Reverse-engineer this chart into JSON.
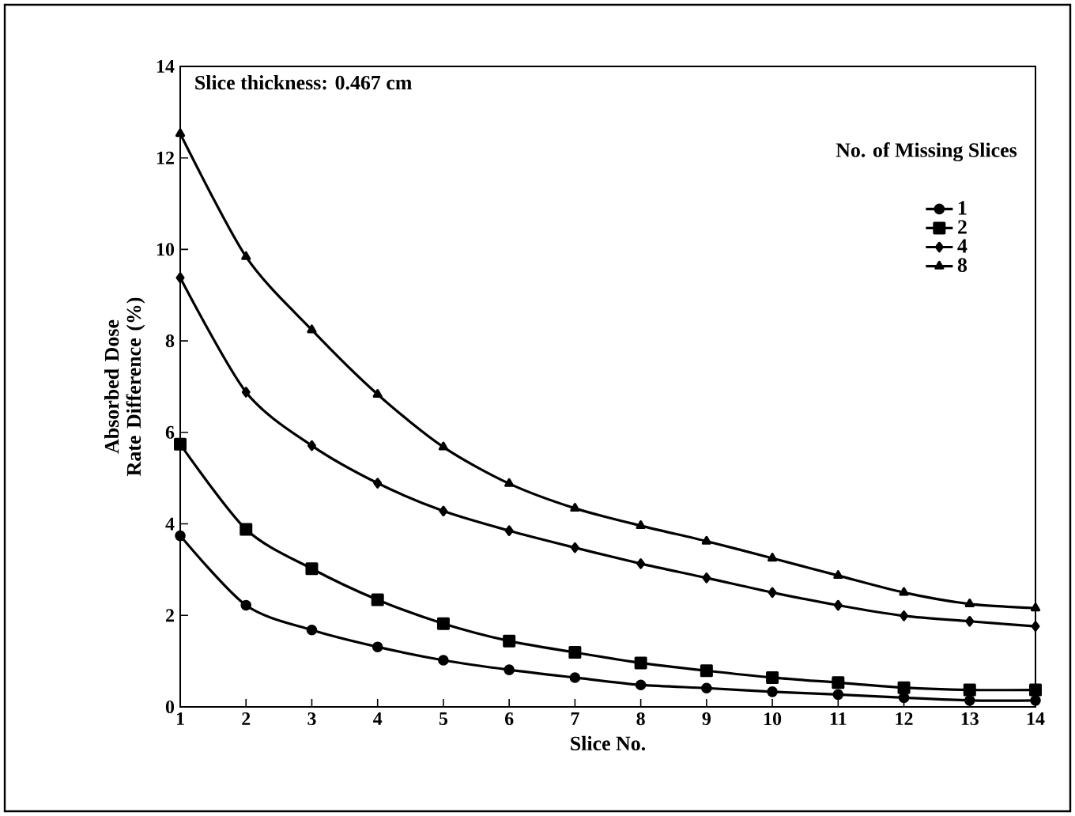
{
  "chart_data": {
    "type": "line",
    "xlabel": "Slice No.",
    "ylabel": "Absorbed Dose Rate Difference (%)",
    "legend_title": "No. of Missing Slices",
    "annotations": [
      "Slice thickness: 0.467 cm"
    ],
    "x": [
      1,
      2,
      3,
      4,
      5,
      6,
      7,
      8,
      9,
      10,
      11,
      12,
      13,
      14
    ],
    "xlim": [
      1,
      14
    ],
    "xticks": [
      1,
      2,
      3,
      4,
      5,
      6,
      7,
      8,
      9,
      10,
      11,
      12,
      13,
      14
    ],
    "ylim": [
      0,
      14
    ],
    "yticks": [
      0,
      2,
      4,
      6,
      8,
      10,
      12,
      14
    ],
    "grid": false,
    "legend": "top right",
    "line_style": "solid",
    "series": [
      {
        "name": "1",
        "color": "#000000",
        "marker": "circle",
        "values": [
          3.74,
          2.22,
          1.68,
          1.31,
          1.02,
          0.81,
          0.64,
          0.48,
          0.41,
          0.33,
          0.27,
          0.2,
          0.14,
          0.14
        ]
      },
      {
        "name": "2",
        "color": "#000000",
        "marker": "square",
        "values": [
          5.74,
          3.88,
          3.02,
          2.34,
          1.82,
          1.44,
          1.19,
          0.96,
          0.79,
          0.64,
          0.53,
          0.42,
          0.37,
          0.37
        ]
      },
      {
        "name": "4",
        "color": "#000000",
        "marker": "diamond",
        "values": [
          9.38,
          6.88,
          5.71,
          4.89,
          4.28,
          3.85,
          3.48,
          3.13,
          2.82,
          2.5,
          2.22,
          1.99,
          1.87,
          1.76
        ]
      },
      {
        "name": "8",
        "color": "#000000",
        "marker": "triangle",
        "values": [
          12.53,
          9.84,
          8.24,
          6.83,
          5.68,
          4.88,
          4.34,
          3.96,
          3.62,
          3.25,
          2.87,
          2.5,
          2.25,
          2.16
        ]
      }
    ]
  }
}
